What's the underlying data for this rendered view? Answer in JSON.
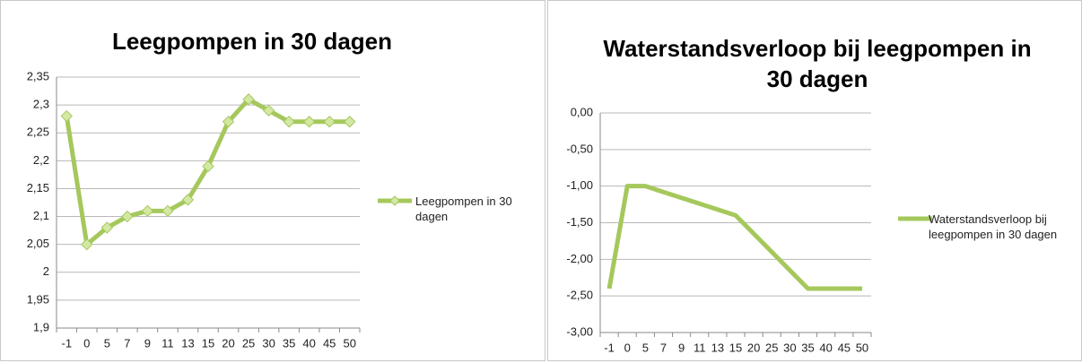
{
  "chart_data": [
    {
      "type": "line",
      "title": "Leegpompen in 30 dagen",
      "categories": [
        "-1",
        "0",
        "5",
        "7",
        "9",
        "11",
        "13",
        "15",
        "20",
        "25",
        "30",
        "35",
        "40",
        "45",
        "50"
      ],
      "series": [
        {
          "name": "Leegpompen in 30 dagen",
          "color": "#a5c85c",
          "marker": "diamond",
          "values": [
            2.28,
            2.05,
            2.08,
            2.1,
            2.11,
            2.11,
            2.13,
            2.19,
            2.27,
            2.31,
            2.29,
            2.27,
            2.27,
            2.27,
            2.27
          ]
        }
      ],
      "ylim": [
        1.9,
        2.35
      ],
      "yticks": [
        {
          "value": 1.9,
          "label": "1,9"
        },
        {
          "value": 1.95,
          "label": "1,95"
        },
        2,
        {
          "value": 2.05,
          "label": "2,05"
        },
        {
          "value": 2.1,
          "label": "2,1"
        },
        {
          "value": 2.15,
          "label": "2,15"
        },
        {
          "value": 2.2,
          "label": "2,2"
        },
        {
          "value": 2.25,
          "label": "2,25"
        },
        {
          "value": 2.3,
          "label": "2,3"
        },
        {
          "value": 2.35,
          "label": "2,35"
        }
      ],
      "grid": true,
      "legend": "right"
    },
    {
      "type": "line",
      "title": "Waterstandsverloop bij leegpompen in 30 dagen",
      "categories": [
        "-1",
        "0",
        "5",
        "7",
        "9",
        "11",
        "13",
        "15",
        "20",
        "25",
        "30",
        "35",
        "40",
        "45",
        "50"
      ],
      "series": [
        {
          "name": "Waterstandsverloop bij leegpompen in 30 dagen",
          "color": "#a5c85c",
          "marker": "none",
          "values": [
            -2.4,
            -1.0,
            -1.0,
            -1.08,
            -1.16,
            -1.24,
            -1.32,
            -1.4,
            -1.65,
            -1.9,
            -2.15,
            -2.4,
            -2.4,
            -2.4,
            -2.4
          ]
        }
      ],
      "ylim": [
        -3,
        0
      ],
      "yticks": [
        {
          "value": -3,
          "label": "-3,00"
        },
        {
          "value": -2.5,
          "label": "-2,50"
        },
        {
          "value": -2,
          "label": "-2,00"
        },
        {
          "value": -1.5,
          "label": "-1,50"
        },
        {
          "value": -1,
          "label": "-1,00"
        },
        {
          "value": -0.5,
          "label": "-0,50"
        },
        {
          "value": 0,
          "label": "0,00"
        }
      ],
      "grid": true,
      "legend": "right"
    }
  ]
}
